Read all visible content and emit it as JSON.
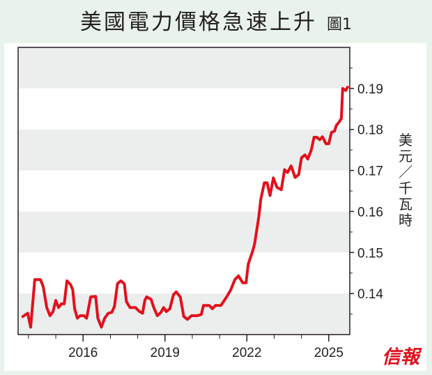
{
  "header": {
    "title": "美國電力價格急速上升",
    "figure_label": "圖1"
  },
  "logo_text": "信報",
  "chart_data": {
    "type": "line",
    "title": "美國電力價格急速上升",
    "ylabel": "美元／千瓦時",
    "xlabel": "",
    "xlim": [
      2013.62,
      2025.77
    ],
    "ylim": [
      0.13,
      0.2
    ],
    "x_ticks": [
      2016,
      2019,
      2022,
      2025
    ],
    "x_tick_labels": [
      "2016",
      "2019",
      "2022",
      "2025"
    ],
    "y_ticks": [
      0.14,
      0.15,
      0.16,
      0.17,
      0.18,
      0.19
    ],
    "y_tick_labels": [
      "0.14",
      "0.15",
      "0.16",
      "0.17",
      "0.18",
      "0.19"
    ],
    "y_axis_side": "right",
    "band_colors": [
      "#eceeee",
      "#ffffff"
    ],
    "line_color": "#e3101b",
    "series": [
      {
        "name": "US electricity price",
        "x": [
          2013.79,
          2013.97,
          2014.08,
          2014.23,
          2014.44,
          2014.54,
          2014.67,
          2014.79,
          2014.9,
          2015.0,
          2015.1,
          2015.21,
          2015.31,
          2015.41,
          2015.54,
          2015.62,
          2015.69,
          2015.79,
          2015.9,
          2016.03,
          2016.13,
          2016.28,
          2016.46,
          2016.54,
          2016.67,
          2016.79,
          2016.92,
          2017.05,
          2017.15,
          2017.26,
          2017.38,
          2017.51,
          2017.59,
          2017.72,
          2017.92,
          2018.05,
          2018.18,
          2018.26,
          2018.33,
          2018.49,
          2018.59,
          2018.72,
          2018.85,
          2018.95,
          2019.05,
          2019.18,
          2019.31,
          2019.41,
          2019.56,
          2019.69,
          2019.82,
          2019.97,
          2020.18,
          2020.33,
          2020.41,
          2020.62,
          2020.74,
          2020.85,
          2021.05,
          2021.26,
          2021.41,
          2021.56,
          2021.69,
          2021.85,
          2021.97,
          2022.05,
          2022.21,
          2022.28,
          2022.44,
          2022.51,
          2022.64,
          2022.74,
          2022.85,
          2022.97,
          2023.1,
          2023.26,
          2023.38,
          2023.49,
          2023.62,
          2023.77,
          2023.9,
          2024.0,
          2024.13,
          2024.23,
          2024.36,
          2024.46,
          2024.56,
          2024.67,
          2024.77,
          2024.9,
          2025.0,
          2025.1,
          2025.21,
          2025.28,
          2025.38,
          2025.46,
          2025.51,
          2025.62,
          2025.69
        ],
        "values": [
          0.1344,
          0.1352,
          0.1318,
          0.1434,
          0.1434,
          0.1417,
          0.1366,
          0.1346,
          0.1356,
          0.1383,
          0.1366,
          0.1375,
          0.1375,
          0.1431,
          0.1422,
          0.1409,
          0.1363,
          0.134,
          0.1346,
          0.1346,
          0.134,
          0.1392,
          0.1393,
          0.134,
          0.1318,
          0.134,
          0.1352,
          0.1354,
          0.1369,
          0.1424,
          0.1431,
          0.1424,
          0.138,
          0.1366,
          0.1366,
          0.1357,
          0.1352,
          0.1383,
          0.1392,
          0.1386,
          0.1366,
          0.1346,
          0.1354,
          0.1366,
          0.1356,
          0.1363,
          0.1397,
          0.1404,
          0.1392,
          0.1344,
          0.1337,
          0.1346,
          0.1346,
          0.1349,
          0.1371,
          0.1371,
          0.1363,
          0.1371,
          0.1371,
          0.1392,
          0.1409,
          0.1434,
          0.1443,
          0.1426,
          0.1426,
          0.1472,
          0.1503,
          0.152,
          0.1588,
          0.163,
          0.167,
          0.167,
          0.1639,
          0.1682,
          0.1659,
          0.1653,
          0.1702,
          0.1695,
          0.1711,
          0.1683,
          0.169,
          0.1731,
          0.1738,
          0.1728,
          0.175,
          0.1781,
          0.1781,
          0.1775,
          0.1782,
          0.1765,
          0.1765,
          0.1793,
          0.1796,
          0.181,
          0.1818,
          0.1827,
          0.19,
          0.1895,
          0.1903
        ]
      }
    ]
  }
}
